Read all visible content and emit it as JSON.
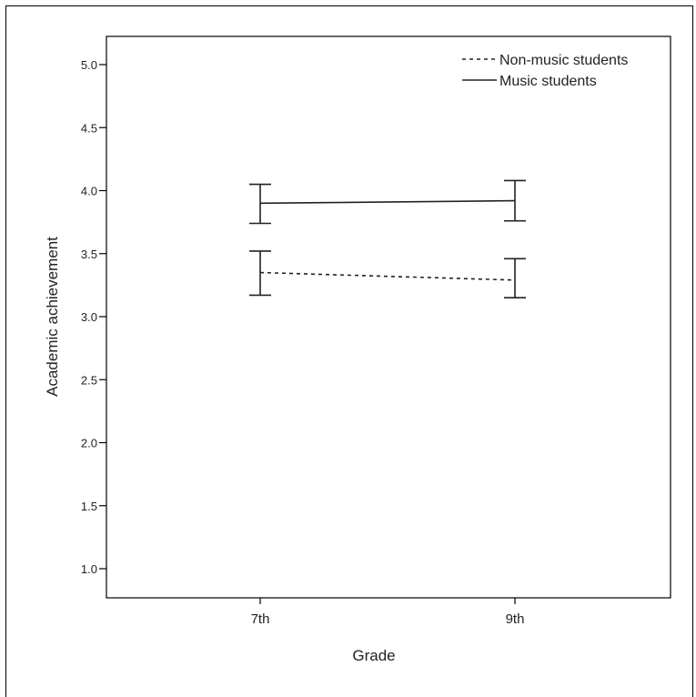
{
  "chart_data": {
    "type": "line",
    "title": "",
    "xlabel": "Grade",
    "ylabel": "Academic achievement",
    "categories": [
      "7th",
      "9th"
    ],
    "ylim": [
      0.8,
      5.2
    ],
    "yticks": [
      "1.0",
      "1.5",
      "2.0",
      "2.5",
      "3.0",
      "3.5",
      "4.0",
      "4.5",
      "5.0"
    ],
    "ytick_values": [
      1.0,
      1.5,
      2.0,
      2.5,
      3.0,
      3.5,
      4.0,
      4.5,
      5.0
    ],
    "grid": false,
    "legend_position": "top-right",
    "series": [
      {
        "name": "Non-music students",
        "line_style": "dashed",
        "values": [
          3.35,
          3.29
        ],
        "error_low": [
          3.17,
          3.15
        ],
        "error_high": [
          3.52,
          3.46
        ]
      },
      {
        "name": "Music students",
        "line_style": "solid",
        "values": [
          3.9,
          3.92
        ],
        "error_low": [
          3.74,
          3.76
        ],
        "error_high": [
          4.05,
          4.08
        ]
      }
    ],
    "colors": {
      "line": "#222222",
      "axis": "#000000",
      "background": "#ffffff"
    }
  }
}
